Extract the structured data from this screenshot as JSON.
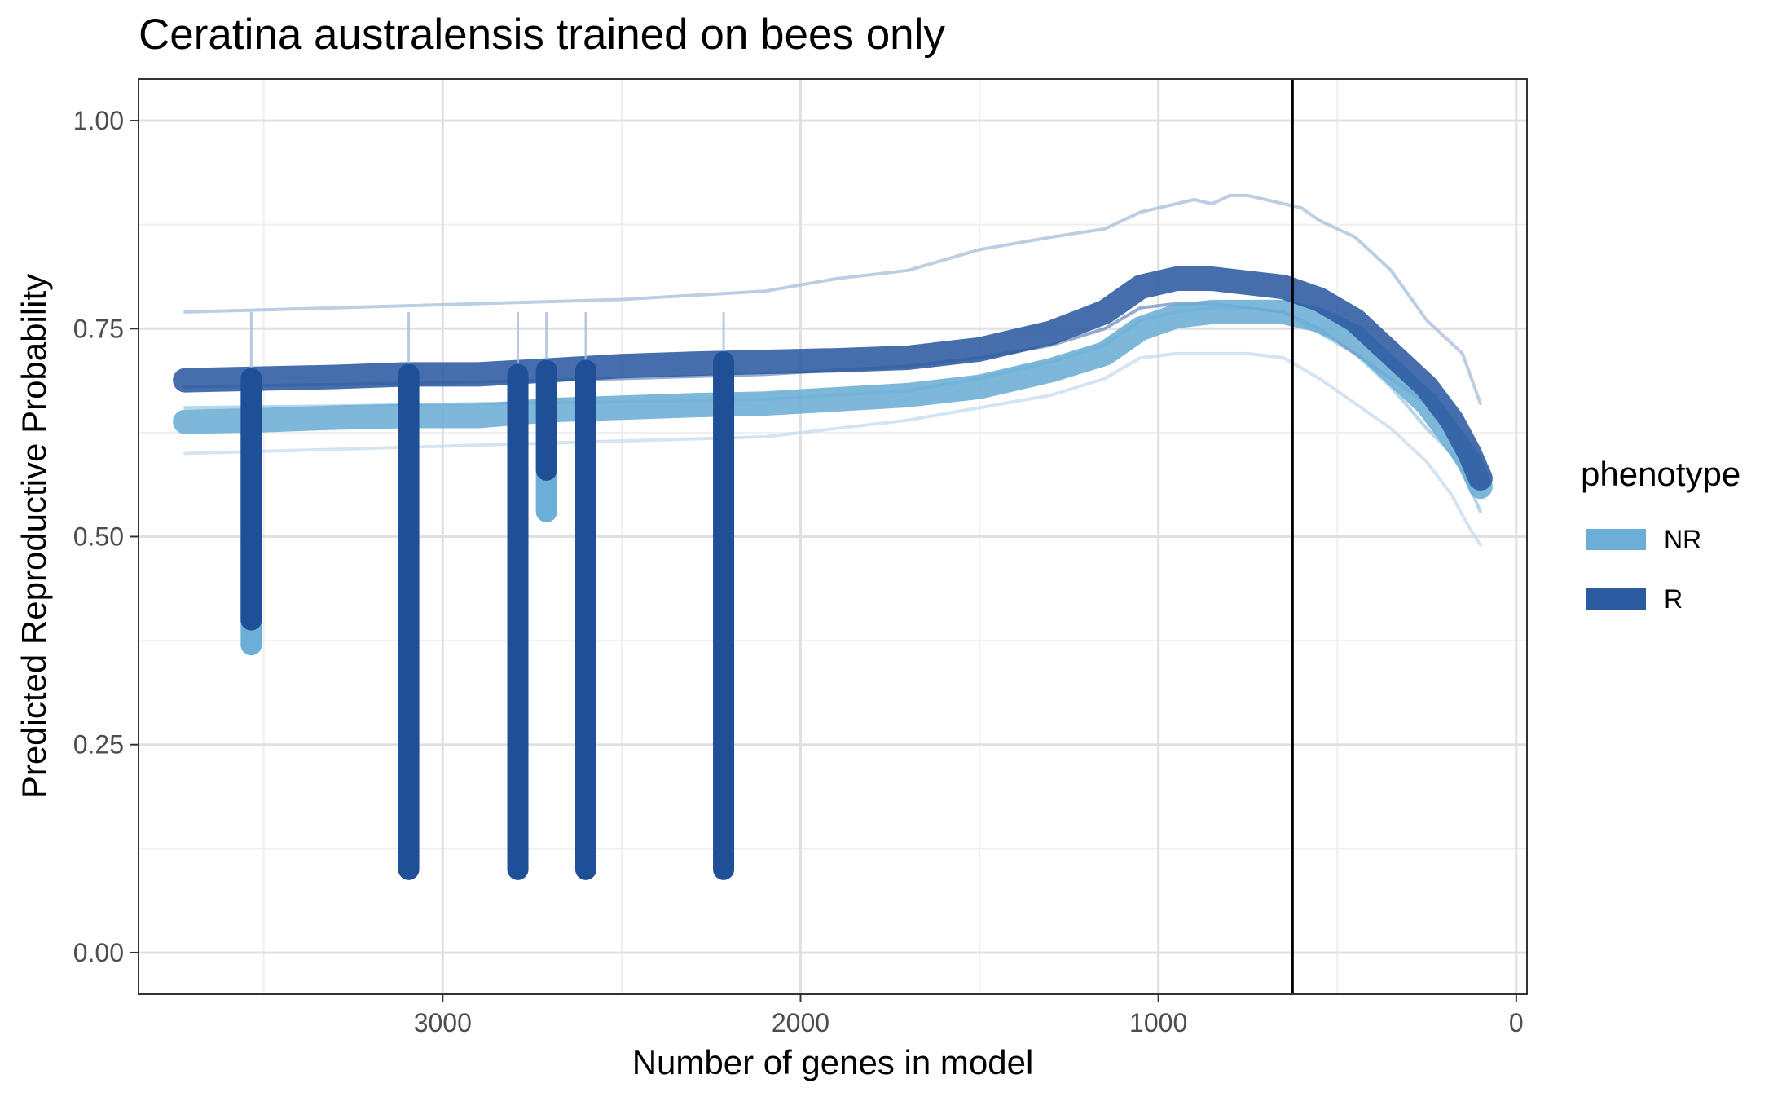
{
  "chart_data": {
    "type": "line",
    "title": "Ceratina australensis trained on bees only",
    "xlabel": "Number of genes in model",
    "ylabel": "Predicted Reproductive Probability",
    "x_reversed": true,
    "xlim": [
      3850,
      -30
    ],
    "ylim": [
      -0.05,
      1.05
    ],
    "x_ticks": [
      3000,
      2000,
      1000,
      0
    ],
    "x_tick_labels": [
      "3000",
      "2000",
      "1000",
      "0"
    ],
    "y_ticks": [
      0,
      0.25,
      0.5,
      0.75,
      1.0
    ],
    "y_tick_labels": [
      "0.00",
      "0.25",
      "0.50",
      "0.75",
      "1.00"
    ],
    "grid": true,
    "vertical_reference_line": 625,
    "legend": {
      "title": "phenotype",
      "position": "right",
      "entries": [
        {
          "label": "NR",
          "color": "#6baed6"
        },
        {
          "label": "R",
          "color": "#2c5aa0"
        }
      ]
    },
    "series": [
      {
        "name": "NR",
        "role": "mean",
        "color": "#6baed6",
        "x": [
          3720,
          3500,
          3300,
          3100,
          2900,
          2700,
          2500,
          2300,
          2100,
          1900,
          1700,
          1500,
          1300,
          1150,
          1050,
          950,
          850,
          750,
          650,
          550,
          450,
          350,
          250,
          180,
          130,
          100
        ],
        "y": [
          0.638,
          0.64,
          0.643,
          0.645,
          0.645,
          0.652,
          0.655,
          0.658,
          0.66,
          0.665,
          0.67,
          0.68,
          0.7,
          0.72,
          0.75,
          0.765,
          0.77,
          0.77,
          0.77,
          0.76,
          0.74,
          0.7,
          0.66,
          0.62,
          0.59,
          0.56
        ]
      },
      {
        "name": "R",
        "role": "mean",
        "color": "#2c5aa0",
        "x": [
          3720,
          3500,
          3300,
          3100,
          2900,
          2700,
          2500,
          2300,
          2100,
          1900,
          1700,
          1500,
          1300,
          1150,
          1050,
          950,
          850,
          750,
          650,
          550,
          450,
          350,
          250,
          180,
          130,
          100
        ],
        "y": [
          0.688,
          0.69,
          0.692,
          0.695,
          0.695,
          0.7,
          0.705,
          0.708,
          0.71,
          0.712,
          0.715,
          0.725,
          0.745,
          0.77,
          0.8,
          0.81,
          0.81,
          0.805,
          0.8,
          0.785,
          0.76,
          0.72,
          0.68,
          0.64,
          0.6,
          0.57
        ]
      },
      {
        "name": "",
        "role": "individual",
        "color": "#a6bddb",
        "x": [
          3720,
          3300,
          2900,
          2500,
          2100,
          1900,
          1700,
          1500,
          1300,
          1150,
          1100,
          1050,
          1000,
          950,
          900,
          850,
          800,
          750,
          700,
          650,
          600,
          550,
          500,
          450,
          400,
          350,
          300,
          250,
          200,
          150,
          100
        ],
        "y": [
          0.77,
          0.775,
          0.78,
          0.785,
          0.795,
          0.81,
          0.82,
          0.845,
          0.86,
          0.87,
          0.88,
          0.89,
          0.895,
          0.9,
          0.905,
          0.9,
          0.91,
          0.91,
          0.905,
          0.9,
          0.895,
          0.88,
          0.87,
          0.86,
          0.84,
          0.82,
          0.79,
          0.76,
          0.74,
          0.72,
          0.66
        ]
      },
      {
        "name": "",
        "role": "individual",
        "color": "#c6dbef",
        "x": [
          3720,
          3300,
          2900,
          2500,
          2100,
          1900,
          1700,
          1500,
          1300,
          1150,
          1050,
          950,
          850,
          750,
          650,
          550,
          450,
          350,
          250,
          180,
          130,
          100
        ],
        "y": [
          0.6,
          0.605,
          0.61,
          0.615,
          0.62,
          0.63,
          0.64,
          0.655,
          0.67,
          0.69,
          0.715,
          0.72,
          0.72,
          0.72,
          0.715,
          0.69,
          0.66,
          0.63,
          0.59,
          0.55,
          0.51,
          0.49
        ]
      },
      {
        "name": "",
        "role": "individual",
        "color": "#9ecae1",
        "x": [
          3720,
          3300,
          2900,
          2500,
          2100,
          1900,
          1700,
          1500,
          1300,
          1150,
          1050,
          950,
          850,
          750,
          650,
          550,
          450,
          350,
          250,
          180,
          130,
          100
        ],
        "y": [
          0.655,
          0.657,
          0.66,
          0.662,
          0.665,
          0.67,
          0.675,
          0.69,
          0.71,
          0.73,
          0.76,
          0.77,
          0.775,
          0.775,
          0.77,
          0.745,
          0.72,
          0.68,
          0.63,
          0.6,
          0.56,
          0.53
        ]
      },
      {
        "name": "",
        "role": "individual",
        "color": "#6f8fc0",
        "x": [
          3720,
          3300,
          2900,
          2500,
          2100,
          1900,
          1700,
          1500,
          1300,
          1150,
          1050,
          950,
          850,
          750,
          650,
          550,
          450,
          350,
          250,
          180,
          130,
          100
        ],
        "y": [
          0.68,
          0.683,
          0.686,
          0.69,
          0.695,
          0.7,
          0.705,
          0.715,
          0.73,
          0.75,
          0.775,
          0.78,
          0.78,
          0.775,
          0.77,
          0.75,
          0.72,
          0.69,
          0.66,
          0.64,
          0.6,
          0.56
        ]
      }
    ],
    "drops": [
      {
        "series": "R",
        "x": 3535,
        "y_start": 0.69,
        "y_end": 0.4,
        "nr_end": 0.37
      },
      {
        "series": "R",
        "x": 3095,
        "y_start": 0.695,
        "y_end": 0.1
      },
      {
        "series": "R",
        "x": 2790,
        "y_start": 0.695,
        "y_end": 0.1
      },
      {
        "series": "R",
        "x": 2710,
        "y_start": 0.7,
        "y_end": 0.58,
        "nr_end": 0.53
      },
      {
        "series": "R",
        "x": 2600,
        "y_start": 0.7,
        "y_end": 0.1
      },
      {
        "series": "R",
        "x": 2215,
        "y_start": 0.71,
        "y_end": 0.1
      }
    ]
  },
  "colors": {
    "panel_border": "#333333",
    "grid_major": "#e0e0e0",
    "grid_minor": "#efefef",
    "reference_line": "#000000"
  }
}
